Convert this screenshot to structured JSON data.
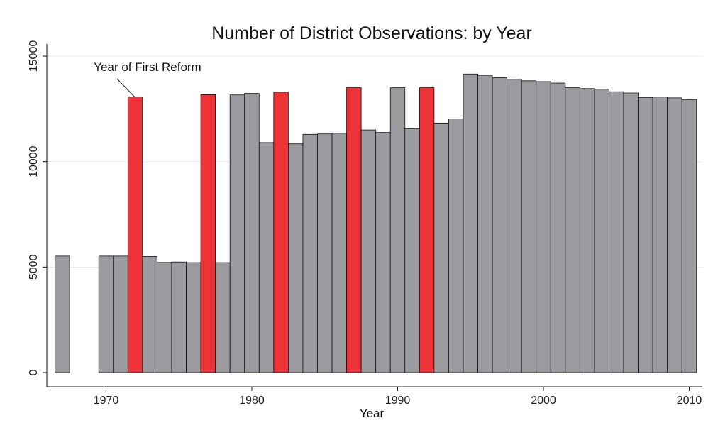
{
  "chart_data": {
    "type": "bar",
    "title": "Number of District Observations: by Year",
    "xlabel": "Year",
    "ylabel": "",
    "xlim": [
      1966,
      2011
    ],
    "ylim": [
      0,
      15000
    ],
    "x_ticks": [
      "1970",
      "1980",
      "1990",
      "2000",
      "2010"
    ],
    "y_ticks": [
      "0",
      "5000",
      "10000",
      "15000"
    ],
    "grid": true,
    "legend": "none",
    "colors": {
      "default": "#9b9b9f",
      "reform": "#ee3338",
      "edge": "#111111"
    },
    "annotation": {
      "text": "Year of First Reform",
      "target_year": 1972
    },
    "points": [
      {
        "year": 1967,
        "value": 5520,
        "reform": false
      },
      {
        "year": 1970,
        "value": 5520,
        "reform": false
      },
      {
        "year": 1971,
        "value": 5520,
        "reform": false
      },
      {
        "year": 1972,
        "value": 13070,
        "reform": true
      },
      {
        "year": 1973,
        "value": 5500,
        "reform": false
      },
      {
        "year": 1974,
        "value": 5220,
        "reform": false
      },
      {
        "year": 1975,
        "value": 5240,
        "reform": false
      },
      {
        "year": 1976,
        "value": 5210,
        "reform": false
      },
      {
        "year": 1977,
        "value": 13170,
        "reform": true
      },
      {
        "year": 1978,
        "value": 5210,
        "reform": false
      },
      {
        "year": 1979,
        "value": 13160,
        "reform": false
      },
      {
        "year": 1980,
        "value": 13230,
        "reform": false
      },
      {
        "year": 1981,
        "value": 10900,
        "reform": false
      },
      {
        "year": 1982,
        "value": 13290,
        "reform": true
      },
      {
        "year": 1983,
        "value": 10840,
        "reform": false
      },
      {
        "year": 1984,
        "value": 11290,
        "reform": false
      },
      {
        "year": 1985,
        "value": 11310,
        "reform": false
      },
      {
        "year": 1986,
        "value": 11340,
        "reform": false
      },
      {
        "year": 1987,
        "value": 13500,
        "reform": true
      },
      {
        "year": 1988,
        "value": 11500,
        "reform": false
      },
      {
        "year": 1989,
        "value": 11380,
        "reform": false
      },
      {
        "year": 1990,
        "value": 13500,
        "reform": false
      },
      {
        "year": 1991,
        "value": 11560,
        "reform": false
      },
      {
        "year": 1992,
        "value": 13500,
        "reform": true
      },
      {
        "year": 1993,
        "value": 11790,
        "reform": false
      },
      {
        "year": 1994,
        "value": 12020,
        "reform": false
      },
      {
        "year": 1995,
        "value": 14150,
        "reform": false
      },
      {
        "year": 1996,
        "value": 14090,
        "reform": false
      },
      {
        "year": 1997,
        "value": 13980,
        "reform": false
      },
      {
        "year": 1998,
        "value": 13900,
        "reform": false
      },
      {
        "year": 1999,
        "value": 13830,
        "reform": false
      },
      {
        "year": 2000,
        "value": 13790,
        "reform": false
      },
      {
        "year": 2001,
        "value": 13720,
        "reform": false
      },
      {
        "year": 2002,
        "value": 13500,
        "reform": false
      },
      {
        "year": 2003,
        "value": 13460,
        "reform": false
      },
      {
        "year": 2004,
        "value": 13430,
        "reform": false
      },
      {
        "year": 2005,
        "value": 13310,
        "reform": false
      },
      {
        "year": 2006,
        "value": 13250,
        "reform": false
      },
      {
        "year": 2007,
        "value": 13040,
        "reform": false
      },
      {
        "year": 2008,
        "value": 13060,
        "reform": false
      },
      {
        "year": 2009,
        "value": 13020,
        "reform": false
      },
      {
        "year": 2010,
        "value": 12940,
        "reform": false
      }
    ]
  }
}
